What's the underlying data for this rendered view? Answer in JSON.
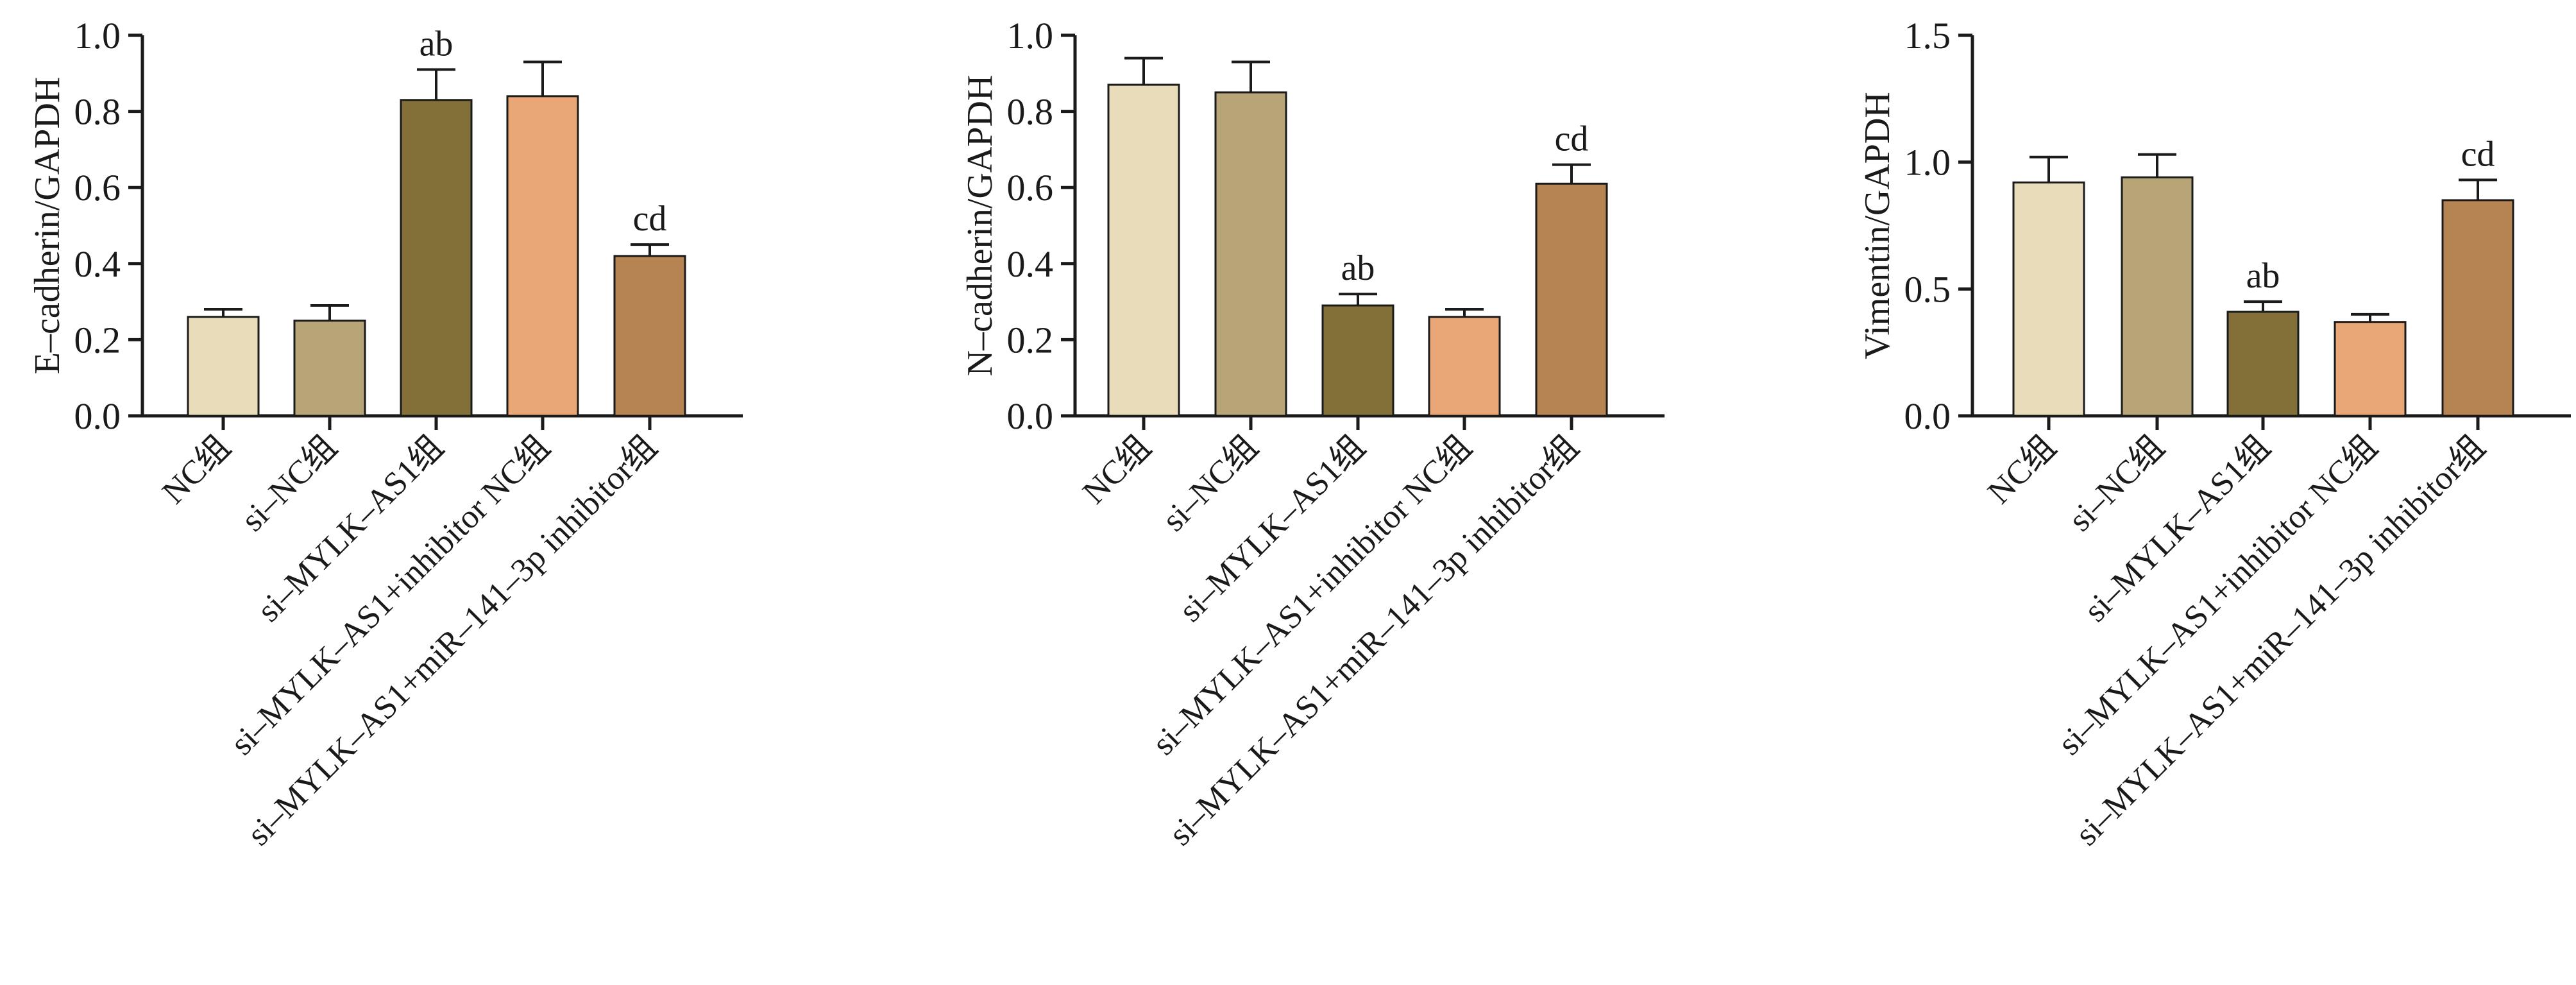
{
  "chart_data": [
    {
      "type": "bar",
      "ylabel": "E–cadherin/GAPDH",
      "ylim": [
        0,
        1.0
      ],
      "yticks": [
        "0.0",
        "0.2",
        "0.4",
        "0.6",
        "0.8",
        "1.0"
      ],
      "categories": [
        "NC组",
        "si–NC组",
        "si–MYLK–AS1组",
        "si–MYLK–AS1+inhibitor NC组",
        "si–MYLK–AS1+miR–141–3p inhibitor组"
      ],
      "values": [
        0.26,
        0.25,
        0.83,
        0.84,
        0.42
      ],
      "errors": [
        0.02,
        0.04,
        0.08,
        0.09,
        0.03
      ],
      "annotations": [
        "",
        "",
        "ab",
        "",
        "cd"
      ]
    },
    {
      "type": "bar",
      "ylabel": "N–cadherin/GAPDH",
      "ylim": [
        0,
        1.0
      ],
      "yticks": [
        "0.0",
        "0.2",
        "0.4",
        "0.6",
        "0.8",
        "1.0"
      ],
      "categories": [
        "NC组",
        "si–NC组",
        "si–MYLK–AS1组",
        "si–MYLK–AS1+inhibitor NC组",
        "si–MYLK–AS1+miR–141–3p inhibitor组"
      ],
      "values": [
        0.87,
        0.85,
        0.29,
        0.26,
        0.61
      ],
      "errors": [
        0.07,
        0.08,
        0.03,
        0.02,
        0.05
      ],
      "annotations": [
        "",
        "",
        "ab",
        "",
        "cd"
      ]
    },
    {
      "type": "bar",
      "ylabel": "Vimentin/GAPDH",
      "ylim": [
        0,
        1.5
      ],
      "yticks": [
        "0.0",
        "0.5",
        "1.0",
        "1.5"
      ],
      "categories": [
        "NC组",
        "si–NC组",
        "si–MYLK–AS1组",
        "si–MYLK–AS1+inhibitor NC组",
        "si–MYLK–AS1+miR–141–3p inhibitor组"
      ],
      "values": [
        0.92,
        0.94,
        0.41,
        0.37,
        0.85
      ],
      "errors": [
        0.1,
        0.09,
        0.04,
        0.03,
        0.08
      ],
      "annotations": [
        "",
        "",
        "ab",
        "",
        "cd"
      ]
    }
  ],
  "colors": {
    "bars": [
      "#e8dcbb",
      "#b7a577",
      "#837039",
      "#e9a676",
      "#b68453"
    ],
    "axis": "#1a1a1a"
  }
}
